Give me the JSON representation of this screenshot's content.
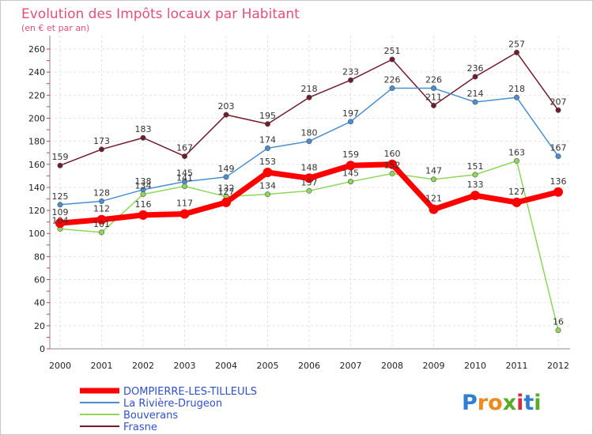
{
  "chart_data": {
    "type": "line",
    "title": "Evolution des Impôts locaux par Habitant",
    "subtitle": "(en € et par an)",
    "xlabel": "",
    "ylabel": "",
    "ylim": [
      0,
      260
    ],
    "yticks": [
      0,
      20,
      40,
      60,
      80,
      100,
      120,
      140,
      160,
      180,
      200,
      220,
      240,
      260
    ],
    "x": [
      "2000",
      "2001",
      "2002",
      "2003",
      "2004",
      "2005",
      "2006",
      "2007",
      "2008",
      "2009",
      "2010",
      "2011",
      "2012"
    ],
    "grid": true,
    "legend_position": "bottom-left",
    "series": [
      {
        "name": "DOMPIERRE-LES-TILLEULS",
        "color": "#ff0000",
        "values": [
          109,
          112,
          116,
          117,
          127,
          153,
          148,
          159,
          160,
          121,
          133,
          127,
          136
        ]
      },
      {
        "name": "La Rivière-Drugeon",
        "color": "#4a8ed0",
        "values": [
          125,
          128,
          138,
          145,
          149,
          174,
          180,
          197,
          226,
          226,
          214,
          218,
          167
        ]
      },
      {
        "name": "Bouverans",
        "color": "#8fd65a",
        "values": [
          104,
          101,
          134,
          141,
          132,
          134,
          137,
          145,
          152,
          147,
          151,
          163,
          16
        ]
      },
      {
        "name": "Frasne",
        "color": "#701c2c",
        "values": [
          159,
          173,
          183,
          167,
          203,
          195,
          218,
          233,
          251,
          211,
          236,
          257,
          207
        ]
      }
    ]
  },
  "logo": {
    "text": "Proxiti",
    "letters": [
      "P",
      "r",
      "o",
      "x",
      "i",
      "t",
      "i"
    ],
    "colors": [
      "#2f7fd0",
      "#f08a1c",
      "#f08a1c",
      "#5aaa2a",
      "#d02f3f",
      "#2f7fd0",
      "#5aaa2a"
    ]
  }
}
